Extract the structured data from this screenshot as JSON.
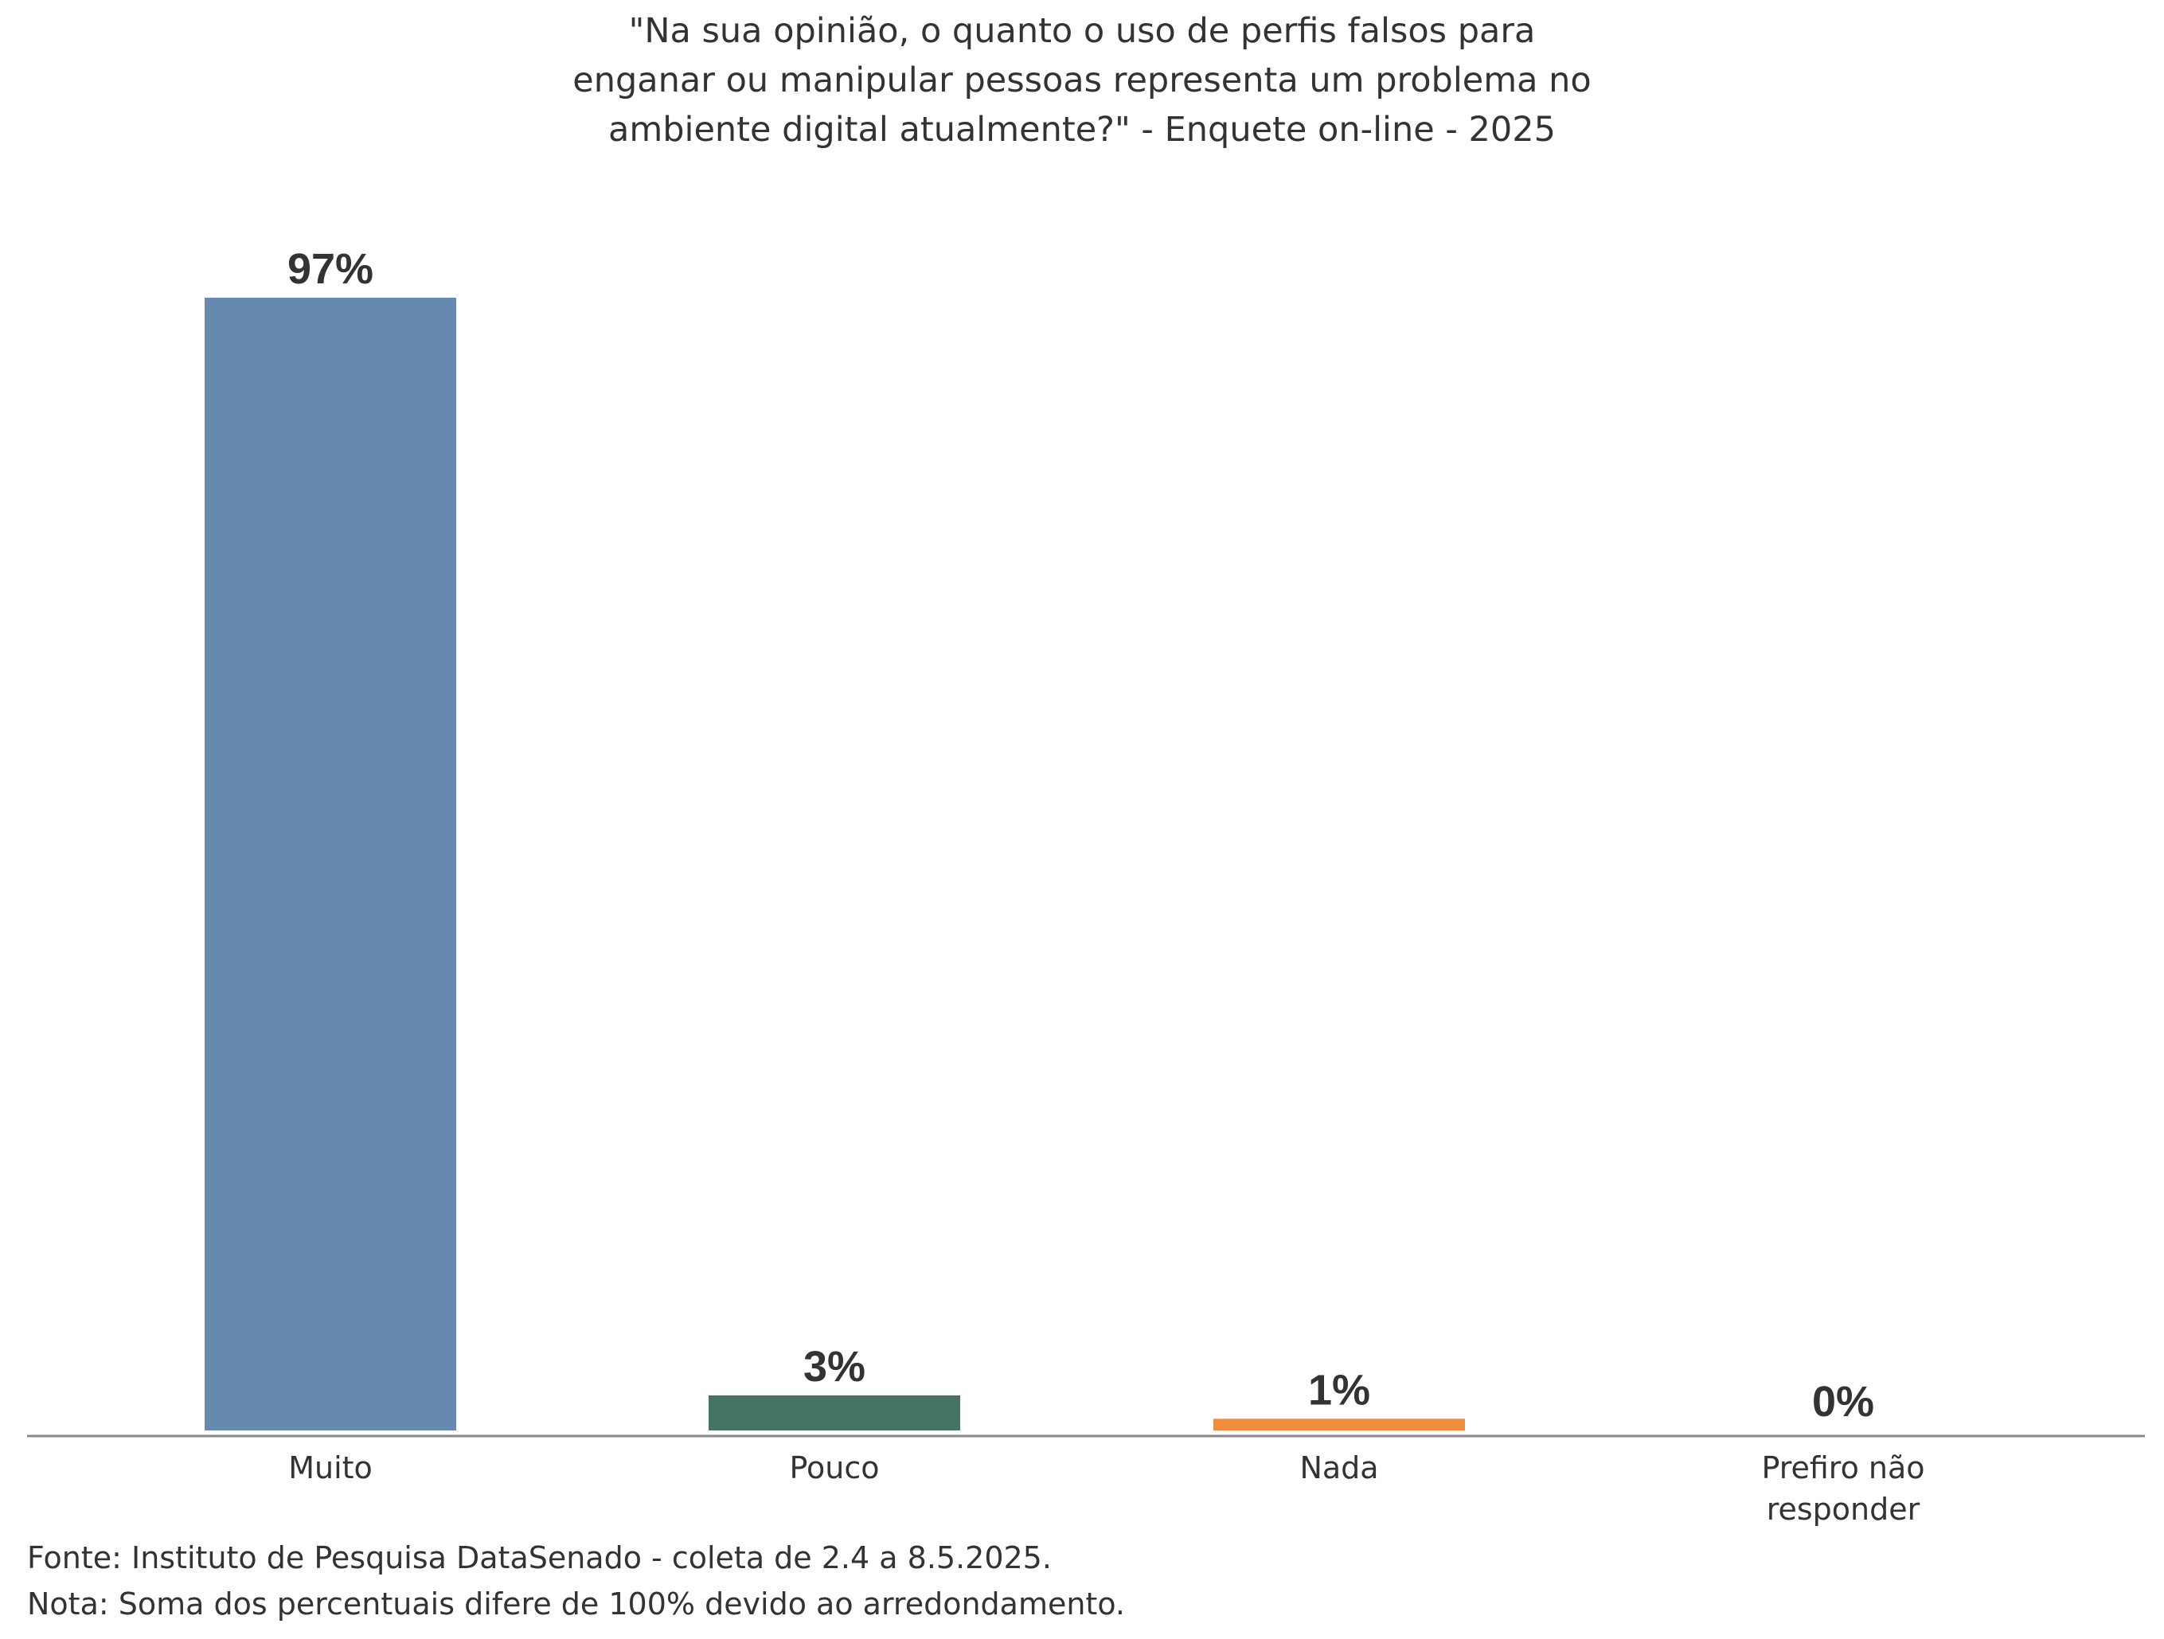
{
  "chart_data": {
    "type": "bar",
    "title_lines": [
      "\"Na sua opinião, o quanto o uso de perfis falsos para",
      "enganar ou manipular pessoas representa um problema no",
      "ambiente digital atualmente?\" - Enquete on-line - 2025"
    ],
    "categories": [
      [
        "Muito"
      ],
      [
        "Pouco"
      ],
      [
        "Nada"
      ],
      [
        "Prefiro não",
        "responder"
      ]
    ],
    "values": [
      97,
      3,
      1,
      0
    ],
    "data_labels": [
      "97%",
      "3%",
      "1%",
      "0%"
    ],
    "colors": [
      "#6689B0",
      "#457463",
      "#EE8D3C",
      "#BBBBBB"
    ],
    "ylim": [
      0,
      97
    ],
    "grid": false,
    "legend": "none"
  },
  "footnotes": {
    "source": "Fonte: Instituto de Pesquisa DataSenado - coleta de 2.4 a 8.5.2025.",
    "note": "Nota: Soma dos percentuais difere de 100% devido ao arredondamento."
  }
}
